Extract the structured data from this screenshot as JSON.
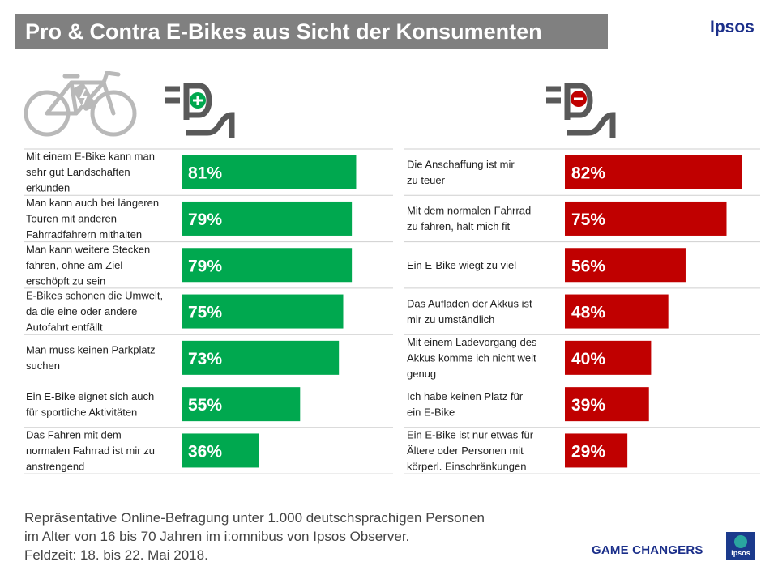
{
  "header": {
    "title": "Pro & Contra E-Bikes aus Sicht der Konsumenten"
  },
  "brand": {
    "name": "Ipsos",
    "tagline": "GAME CHANGERS",
    "logo_text": "Ipsos"
  },
  "colors": {
    "pro": "#00a84f",
    "contra": "#c00000",
    "header_bg": "#808080",
    "brand": "#1b2f8a"
  },
  "icons": {
    "bike": "bicycle-icon",
    "pro": "plug-plus-icon",
    "contra": "plug-minus-icon"
  },
  "footnote": {
    "lines": [
      "Repräsentative Online-Befragung  unter 1.000 deutschsprachigen  Personen",
      "im Alter von 16 bis 70 Jahren im i:omnibus von Ipsos Observer.",
      "Feldzeit: 18. bis 22. Mai 2018."
    ]
  },
  "chart_data": [
    {
      "type": "bar",
      "name": "pro",
      "categories": [
        [
          "Mit einem E-Bike kann man",
          "sehr gut Landschaften",
          "erkunden"
        ],
        [
          "Man kann auch bei längeren",
          "Touren mit anderen",
          "Fahrradfahrern mithalten"
        ],
        [
          "Man kann weitere Stecken",
          "fahren, ohne am Ziel",
          "erschöpft zu sein"
        ],
        [
          "E-Bikes schonen die Umwelt,",
          "da die eine oder andere",
          "Autofahrt entfällt"
        ],
        [
          "Man muss keinen Parkplatz",
          "suchen"
        ],
        [
          "Ein E-Bike eignet sich auch",
          "für sportliche Aktivitäten"
        ],
        [
          "Das Fahren mit dem",
          "normalen Fahrrad ist mir zu",
          "anstrengend"
        ]
      ],
      "values": [
        81,
        79,
        79,
        75,
        73,
        55,
        36
      ],
      "value_labels": [
        "81%",
        "79%",
        "79%",
        "75%",
        "73%",
        "55%",
        "36%"
      ],
      "unit": "%",
      "xlim": [
        0,
        100
      ]
    },
    {
      "type": "bar",
      "name": "contra",
      "categories": [
        [
          "Die Anschaffung ist mir",
          "zu teuer"
        ],
        [
          "Mit dem normalen Fahrrad",
          "zu fahren, hält mich fit"
        ],
        [
          "Ein E-Bike wiegt zu viel"
        ],
        [
          "Das Aufladen der Akkus ist",
          "mir zu umständlich"
        ],
        [
          "Mit einem Ladevorgang des",
          "Akkus komme  ich nicht weit",
          "genug"
        ],
        [
          "Ich habe keinen Platz für",
          "ein E-Bike"
        ],
        [
          "Ein E-Bike ist nur etwas für",
          "Ältere oder Personen mit",
          "körperl.  Einschränkungen"
        ]
      ],
      "values": [
        82,
        75,
        56,
        48,
        40,
        39,
        29
      ],
      "value_labels": [
        "82%",
        "75%",
        "56%",
        "48%",
        "40%",
        "39%",
        "29%"
      ],
      "unit": "%",
      "xlim": [
        0,
        100
      ]
    }
  ]
}
